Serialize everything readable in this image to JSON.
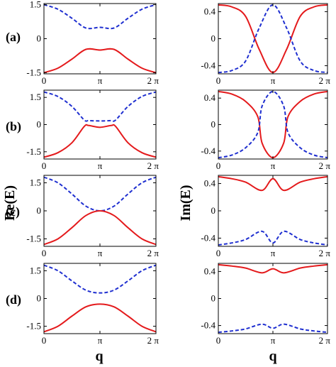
{
  "figure": {
    "y_title_left": "Re(E)",
    "y_title_right": "Im(E)",
    "x_title": "q",
    "panel_labels": [
      "(a)",
      "(b)",
      "(c)",
      "(d)"
    ]
  },
  "colors": {
    "red_series": "#e41a1c",
    "blue_series": "#1f2fd0"
  },
  "chart_data": [
    {
      "type": "line",
      "panel": "(a)",
      "quantity": "Re(E)",
      "xlabel": "",
      "ylabel": "",
      "x_ticks": [
        "0",
        "π",
        "2 π"
      ],
      "y_ticks": [
        "-1.5",
        "0",
        "1.5"
      ],
      "xlim": [
        0,
        6.2832
      ],
      "ylim": [
        -1.55,
        1.55
      ],
      "series": [
        {
          "style": "dashed",
          "color": "blue",
          "x": [
            0,
            0.785,
            1.571,
            2.356,
            3.142,
            3.927,
            4.712,
            5.498,
            6.283
          ],
          "values": [
            1.5,
            1.3,
            0.9,
            0.47,
            0.5,
            0.47,
            0.9,
            1.3,
            1.5
          ]
        },
        {
          "style": "solid",
          "color": "red",
          "x": [
            0,
            0.785,
            1.571,
            2.356,
            3.142,
            3.927,
            4.712,
            5.498,
            6.283
          ],
          "values": [
            -1.5,
            -1.3,
            -0.9,
            -0.47,
            -0.5,
            -0.47,
            -0.9,
            -1.3,
            -1.5
          ]
        }
      ]
    },
    {
      "type": "line",
      "panel": "(a)",
      "quantity": "Im(E)",
      "xlabel": "",
      "ylabel": "",
      "x_ticks": [
        "0",
        "π",
        "2 π"
      ],
      "y_ticks": [
        "0.4",
        "0",
        "-0.4"
      ],
      "xlim": [
        0,
        6.2832
      ],
      "ylim": [
        -0.52,
        0.52
      ],
      "series": [
        {
          "style": "solid",
          "color": "red",
          "x": [
            0,
            0.785,
            1.571,
            2.356,
            3.142,
            3.927,
            4.712,
            5.498,
            6.283
          ],
          "values": [
            0.5,
            0.47,
            0.33,
            -0.16,
            -0.5,
            -0.16,
            0.33,
            0.47,
            0.5
          ]
        },
        {
          "style": "dashed",
          "color": "blue",
          "x": [
            0,
            0.785,
            1.571,
            2.356,
            3.142,
            3.927,
            4.712,
            5.498,
            6.283
          ],
          "values": [
            -0.5,
            -0.47,
            -0.33,
            0.16,
            0.5,
            0.16,
            -0.33,
            -0.47,
            -0.5
          ]
        }
      ]
    },
    {
      "type": "line",
      "panel": "(b)",
      "quantity": "Re(E)",
      "xlabel": "",
      "ylabel": "",
      "x_ticks": [
        "0",
        "π",
        "2 π"
      ],
      "y_ticks": [
        "1.5",
        "0",
        "-1.5"
      ],
      "xlim": [
        0,
        6.2832
      ],
      "ylim": [
        -1.9,
        1.9
      ],
      "series": [
        {
          "style": "dashed",
          "color": "blue",
          "x": [
            0,
            0.785,
            1.571,
            2.262,
            2.513,
            3.142,
            3.77,
            4.021,
            4.712,
            5.498,
            6.283
          ],
          "values": [
            1.8,
            1.55,
            1.0,
            0.25,
            0.22,
            0.2,
            0.22,
            0.25,
            1.0,
            1.55,
            1.8
          ]
        },
        {
          "style": "solid",
          "color": "red",
          "x": [
            0,
            0.785,
            1.571,
            2.262,
            2.513,
            3.142,
            3.77,
            4.021,
            4.712,
            5.498,
            6.283
          ],
          "values": [
            -1.8,
            -1.55,
            -1.0,
            -0.1,
            -0.05,
            -0.15,
            -0.05,
            -0.1,
            -1.0,
            -1.55,
            -1.8
          ]
        }
      ]
    },
    {
      "type": "line",
      "panel": "(b)",
      "quantity": "Im(E)",
      "xlabel": "",
      "ylabel": "",
      "x_ticks": [
        "0",
        "π",
        "2 π"
      ],
      "y_ticks": [
        "0.4",
        "0",
        "-0.4"
      ],
      "xlim": [
        0,
        6.2832
      ],
      "ylim": [
        -0.52,
        0.52
      ],
      "series": [
        {
          "style": "solid",
          "color": "red",
          "x": [
            0,
            0.785,
            1.571,
            2.27,
            2.52,
            3.142,
            3.76,
            4.01,
            4.712,
            5.498,
            6.283
          ],
          "values": [
            0.5,
            0.46,
            0.35,
            0.12,
            -0.28,
            -0.5,
            -0.28,
            0.12,
            0.35,
            0.46,
            0.5
          ]
        },
        {
          "style": "dashed",
          "color": "blue",
          "x": [
            0,
            0.785,
            1.571,
            2.27,
            2.52,
            3.142,
            3.76,
            4.01,
            4.712,
            5.498,
            6.283
          ],
          "values": [
            -0.5,
            -0.46,
            -0.35,
            -0.12,
            0.28,
            0.5,
            0.28,
            -0.12,
            -0.35,
            -0.46,
            -0.5
          ]
        }
      ]
    },
    {
      "type": "line",
      "panel": "(c)",
      "quantity": "Re(E)",
      "xlabel": "",
      "ylabel": "",
      "x_ticks": [
        "0",
        "π",
        "2 π"
      ],
      "y_ticks": [
        "1.5",
        "0",
        "-1.5"
      ],
      "xlim": [
        0,
        6.2832
      ],
      "ylim": [
        -1.9,
        1.9
      ],
      "series": [
        {
          "style": "dashed",
          "color": "blue",
          "x": [
            0,
            0.785,
            1.571,
            2.356,
            3.142,
            3.927,
            4.712,
            5.498,
            6.283
          ],
          "values": [
            1.8,
            1.5,
            0.9,
            0.25,
            0,
            0.25,
            0.9,
            1.5,
            1.8
          ]
        },
        {
          "style": "solid",
          "color": "red",
          "x": [
            0,
            0.785,
            1.571,
            2.356,
            3.142,
            3.927,
            4.712,
            5.498,
            6.283
          ],
          "values": [
            -1.8,
            -1.5,
            -0.9,
            -0.25,
            0,
            -0.25,
            -0.9,
            -1.5,
            -1.8
          ]
        }
      ]
    },
    {
      "type": "line",
      "panel": "(c)",
      "quantity": "Im(E)",
      "xlabel": "",
      "ylabel": "",
      "x_ticks": [
        "0",
        "π",
        "2 π"
      ],
      "y_ticks": [
        "0.4",
        "0",
        "-0.4"
      ],
      "xlim": [
        0,
        6.2832
      ],
      "ylim": [
        -0.52,
        0.52
      ],
      "series": [
        {
          "style": "solid",
          "color": "red",
          "x": [
            0,
            0.785,
            1.571,
            2.513,
            3.142,
            3.77,
            4.712,
            5.498,
            6.283
          ],
          "values": [
            0.5,
            0.47,
            0.42,
            0.3,
            0.47,
            0.3,
            0.42,
            0.47,
            0.5
          ]
        },
        {
          "style": "dashed",
          "color": "blue",
          "x": [
            0,
            0.785,
            1.571,
            2.513,
            3.142,
            3.77,
            4.712,
            5.498,
            6.283
          ],
          "values": [
            -0.5,
            -0.47,
            -0.42,
            -0.3,
            -0.47,
            -0.3,
            -0.42,
            -0.47,
            -0.5
          ]
        }
      ]
    },
    {
      "type": "line",
      "panel": "(d)",
      "quantity": "Re(E)",
      "xlabel": "",
      "ylabel": "",
      "x_ticks": [
        "0",
        "π",
        "2 π"
      ],
      "y_ticks": [
        "1.5",
        "0",
        "-1.5"
      ],
      "xlim": [
        0,
        6.2832
      ],
      "ylim": [
        -1.9,
        1.9
      ],
      "series": [
        {
          "style": "dashed",
          "color": "blue",
          "x": [
            0,
            0.785,
            1.571,
            2.356,
            3.142,
            3.927,
            4.712,
            5.498,
            6.283
          ],
          "values": [
            1.8,
            1.5,
            0.95,
            0.45,
            0.3,
            0.45,
            0.95,
            1.5,
            1.8
          ]
        },
        {
          "style": "solid",
          "color": "red",
          "x": [
            0,
            0.785,
            1.571,
            2.356,
            3.142,
            3.927,
            4.712,
            5.498,
            6.283
          ],
          "values": [
            -1.8,
            -1.5,
            -0.95,
            -0.45,
            -0.3,
            -0.45,
            -0.95,
            -1.5,
            -1.8
          ]
        }
      ]
    },
    {
      "type": "line",
      "panel": "(d)",
      "quantity": "Im(E)",
      "xlabel": "",
      "ylabel": "",
      "x_ticks": [
        "0",
        "π",
        "2 π"
      ],
      "y_ticks": [
        "0.4",
        "0",
        "-0.4"
      ],
      "xlim": [
        0,
        6.2832
      ],
      "ylim": [
        -0.52,
        0.52
      ],
      "series": [
        {
          "style": "solid",
          "color": "red",
          "x": [
            0,
            0.785,
            1.571,
            2.513,
            3.142,
            3.77,
            4.712,
            5.498,
            6.283
          ],
          "values": [
            0.5,
            0.48,
            0.45,
            0.38,
            0.44,
            0.38,
            0.45,
            0.48,
            0.5
          ]
        },
        {
          "style": "dashed",
          "color": "blue",
          "x": [
            0,
            0.785,
            1.571,
            2.513,
            3.142,
            3.77,
            4.712,
            5.498,
            6.283
          ],
          "values": [
            -0.5,
            -0.48,
            -0.45,
            -0.38,
            -0.44,
            -0.38,
            -0.45,
            -0.48,
            -0.5
          ]
        }
      ]
    }
  ]
}
